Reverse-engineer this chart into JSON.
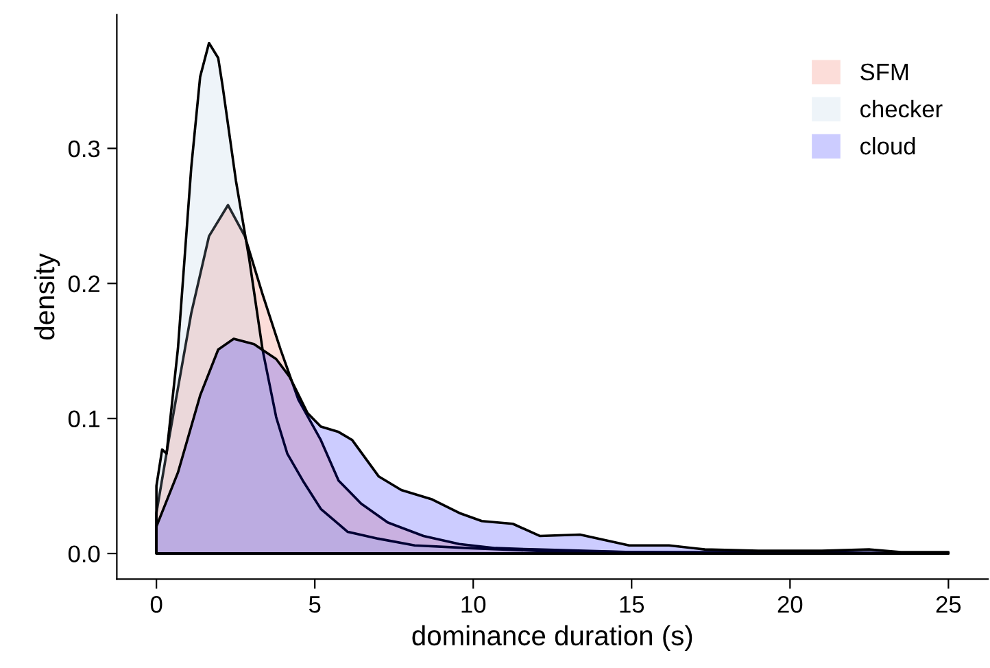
{
  "chart_data": {
    "type": "area",
    "xlabel": "dominance duration (s)",
    "ylabel": "density",
    "xlim": [
      -1.25,
      26.25
    ],
    "ylim": [
      -0.019,
      0.399
    ],
    "xticks": [
      0,
      5,
      10,
      15,
      20,
      25
    ],
    "yticks": [
      {
        "value": 0,
        "label": "0.0"
      },
      {
        "value": 0.1,
        "label": "0.1"
      },
      {
        "value": 0.2,
        "label": "0.2"
      },
      {
        "value": 0.3,
        "label": "0.3"
      }
    ],
    "grid": false,
    "legend": "top right",
    "series": [
      {
        "name": "SFM",
        "color": "#f05541",
        "x": [
          0,
          0.39,
          1.1,
          1.66,
          2.26,
          2.79,
          3.35,
          3.92,
          4.48,
          5.19,
          5.75,
          6.46,
          7.3,
          8.43,
          9.56,
          10.7,
          12,
          13.5,
          15,
          20,
          25
        ],
        "values": [
          0.03,
          0.084,
          0.178,
          0.235,
          0.258,
          0.235,
          0.192,
          0.151,
          0.114,
          0.084,
          0.054,
          0.037,
          0.023,
          0.013,
          0.007,
          0.004,
          0.003,
          0.002,
          0.001,
          0,
          0
        ]
      },
      {
        "name": "checker",
        "color": "#aac8e1",
        "x": [
          0,
          0.18,
          0.32,
          0.68,
          1.1,
          1.38,
          1.66,
          1.95,
          2.09,
          2.51,
          2.93,
          3.35,
          3.78,
          4.13,
          4.62,
          5.19,
          6.04,
          7.0,
          8.15,
          9.84,
          12,
          15,
          20,
          25
        ],
        "values": [
          0.05,
          0.077,
          0.074,
          0.152,
          0.286,
          0.353,
          0.378,
          0.367,
          0.346,
          0.276,
          0.218,
          0.151,
          0.101,
          0.074,
          0.054,
          0.033,
          0.016,
          0.011,
          0.006,
          0.004,
          0.002,
          0.001,
          0.001,
          0
        ]
      },
      {
        "name": "cloud",
        "color": "#0000ff",
        "x": [
          0,
          0.68,
          1.38,
          1.95,
          2.44,
          3.08,
          3.78,
          4.2,
          4.77,
          5.19,
          5.75,
          6.18,
          7.02,
          7.73,
          8.71,
          9.56,
          10.27,
          11.25,
          12.1,
          13.37,
          14.92,
          16.18,
          17.31,
          19,
          21,
          22.5,
          23.5,
          25
        ],
        "values": [
          0.02,
          0.06,
          0.117,
          0.151,
          0.159,
          0.155,
          0.144,
          0.131,
          0.104,
          0.094,
          0.09,
          0.084,
          0.057,
          0.047,
          0.04,
          0.03,
          0.024,
          0.022,
          0.013,
          0.014,
          0.006,
          0.006,
          0.003,
          0.002,
          0.002,
          0.003,
          0.001,
          0.001
        ]
      }
    ]
  }
}
